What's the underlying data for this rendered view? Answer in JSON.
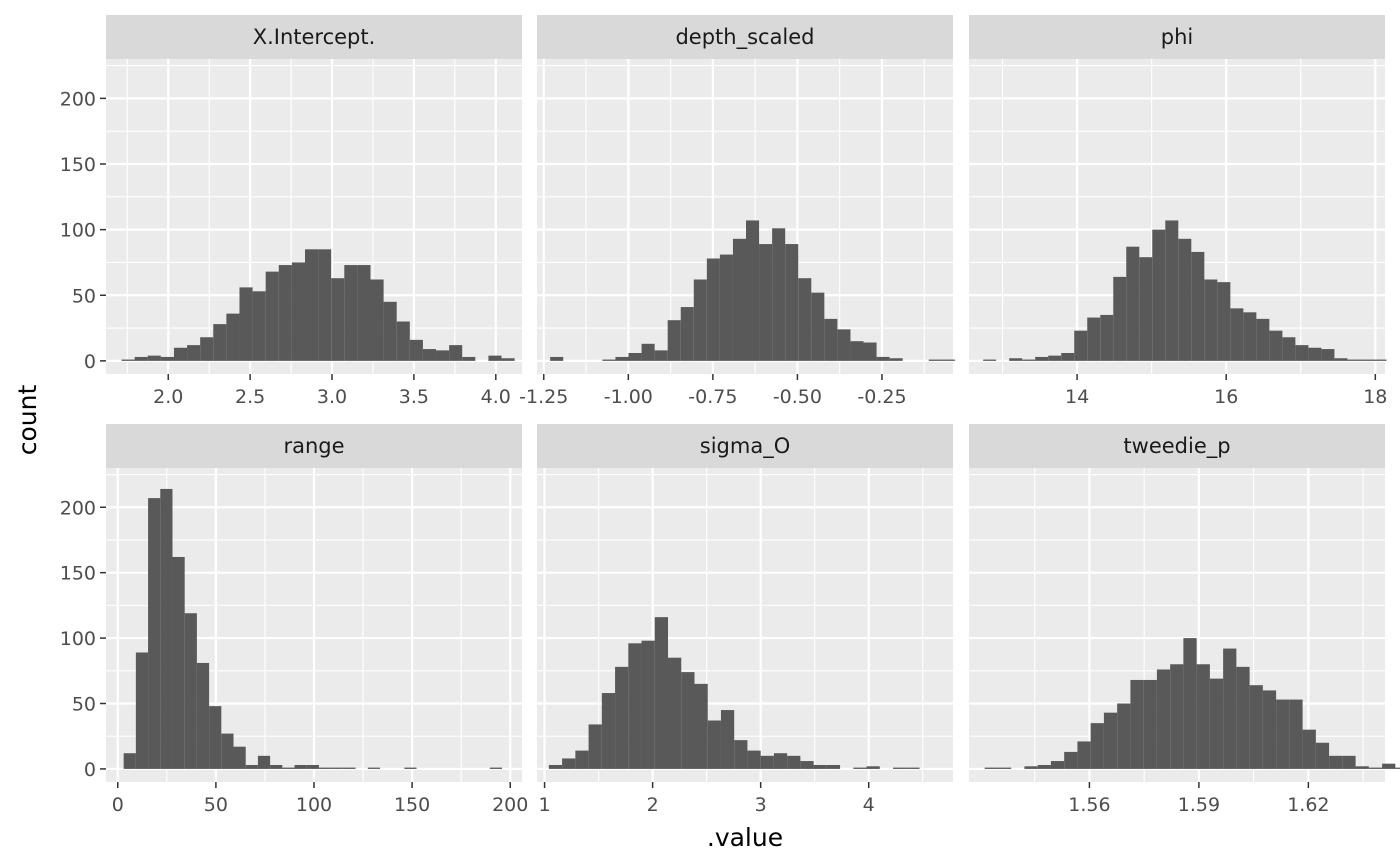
{
  "chart_data": {
    "type": "bar",
    "xlabel": ".value",
    "ylabel": "count",
    "ylim": [
      -10,
      230
    ],
    "y_ticks": [
      0,
      50,
      100,
      150,
      200
    ],
    "grid": true,
    "legend": "none",
    "colors": {
      "bar": "#595959",
      "panel_bg": "#ebebeb",
      "strip_bg": "#d9d9d9",
      "grid": "#ffffff"
    },
    "panels": [
      {
        "title": "X.Intercept.",
        "xlim": [
          1.62,
          4.16
        ],
        "x_ticks": [
          2.0,
          2.5,
          3.0,
          3.5,
          4.0
        ],
        "x_tick_labels": [
          "2.0",
          "2.5",
          "3.0",
          "3.5",
          "4.0"
        ],
        "bin_start": 1.715,
        "bin_width": 0.08,
        "counts": [
          1,
          3,
          4,
          3,
          10,
          12,
          18,
          28,
          36,
          56,
          53,
          68,
          73,
          75,
          85,
          85,
          63,
          73,
          73,
          62,
          45,
          30,
          16,
          9,
          8,
          12,
          3,
          0,
          4,
          2
        ]
      },
      {
        "title": "depth_scaled",
        "xlim": [
          -1.27,
          -0.04
        ],
        "x_ticks": [
          -1.25,
          -1.0,
          -0.75,
          -0.5,
          -0.25
        ],
        "x_tick_labels": [
          "-1.25",
          "-1.00",
          "-0.75",
          "-0.50",
          "-0.25"
        ],
        "bin_start": -1.231,
        "bin_width": 0.0386,
        "counts": [
          3,
          0,
          0,
          0,
          1,
          3,
          6,
          13,
          8,
          31,
          41,
          62,
          78,
          81,
          93,
          107,
          89,
          101,
          89,
          63,
          52,
          32,
          24,
          15,
          14,
          3,
          2,
          0,
          0,
          1,
          1
        ]
      },
      {
        "title": "phi",
        "xlim": [
          12.55,
          18.13
        ],
        "x_ticks": [
          14,
          16,
          18
        ],
        "x_tick_labels": [
          "14",
          "16",
          "18"
        ],
        "bin_start": 12.74,
        "bin_width": 0.1745,
        "counts": [
          1,
          0,
          2,
          1,
          3,
          4,
          6,
          23,
          33,
          35,
          64,
          87,
          79,
          100,
          107,
          93,
          83,
          62,
          60,
          40,
          37,
          32,
          23,
          18,
          12,
          10,
          9,
          2,
          1,
          1,
          1
        ]
      },
      {
        "title": "range",
        "xlim": [
          -6,
          206
        ],
        "x_ticks": [
          0,
          50,
          100,
          150,
          200
        ],
        "x_tick_labels": [
          "0",
          "50",
          "100",
          "150",
          "200"
        ],
        "bin_start": 3,
        "bin_width": 6.22,
        "counts": [
          12,
          89,
          207,
          214,
          162,
          119,
          81,
          48,
          27,
          17,
          3,
          10,
          3,
          1,
          3,
          3,
          1,
          1,
          1,
          0,
          1,
          0,
          0,
          1,
          0,
          0,
          0,
          0,
          0,
          0,
          1
        ]
      },
      {
        "title": "sigma_O",
        "xlim": [
          0.93,
          4.78
        ],
        "x_ticks": [
          1,
          2,
          3,
          4
        ],
        "x_tick_labels": [
          "1",
          "2",
          "3",
          "4"
        ],
        "bin_start": 1.04,
        "bin_width": 0.1225,
        "counts": [
          3,
          8,
          14,
          34,
          58,
          78,
          96,
          98,
          116,
          85,
          74,
          65,
          37,
          45,
          22,
          14,
          10,
          12,
          10,
          6,
          3,
          3,
          0,
          1,
          2,
          0,
          1,
          1
        ]
      },
      {
        "title": "tweedie_p",
        "xlim": [
          1.527,
          1.641
        ],
        "x_ticks": [
          1.56,
          1.59,
          1.62
        ],
        "x_tick_labels": [
          "1.56",
          "1.59",
          "1.62"
        ],
        "bin_start": 1.5313,
        "bin_width": 0.00363,
        "counts": [
          1,
          1,
          0,
          2,
          3,
          6,
          13,
          21,
          35,
          43,
          50,
          68,
          68,
          76,
          80,
          100,
          80,
          69,
          92,
          78,
          64,
          60,
          53,
          53,
          30,
          20,
          10,
          10,
          2,
          1,
          4,
          1
        ]
      }
    ]
  }
}
